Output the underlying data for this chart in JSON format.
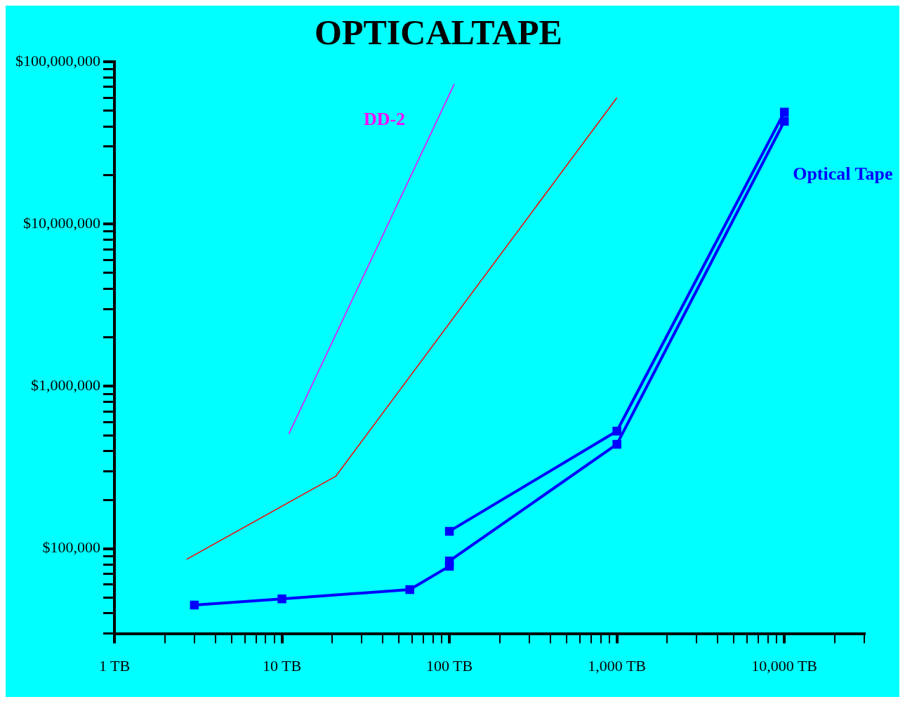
{
  "chart_data": {
    "type": "line",
    "title": "OPTICALTAPE",
    "log": "xy",
    "grid": false,
    "legend": false,
    "marker": "none",
    "line_style": "solid",
    "xlim": [
      1,
      30000
    ],
    "ylim": [
      30000,
      100000000
    ],
    "xticks": [
      {
        "value": 1,
        "label": "1 TB"
      },
      {
        "value": 2,
        "label": null
      },
      {
        "value": 3,
        "label": null
      },
      {
        "value": 4,
        "label": null
      },
      {
        "value": 5,
        "label": null
      },
      {
        "value": 6,
        "label": null
      },
      {
        "value": 7,
        "label": null
      },
      {
        "value": 8,
        "label": null
      },
      {
        "value": 9,
        "label": null
      },
      {
        "value": 10,
        "label": "10 TB"
      },
      {
        "value": 20,
        "label": null
      },
      {
        "value": 30,
        "label": null
      },
      {
        "value": 40,
        "label": null
      },
      {
        "value": 50,
        "label": null
      },
      {
        "value": 60,
        "label": null
      },
      {
        "value": 70,
        "label": null
      },
      {
        "value": 80,
        "label": null
      },
      {
        "value": 90,
        "label": null
      },
      {
        "value": 100,
        "label": "100 TB"
      },
      {
        "value": 200,
        "label": null
      },
      {
        "value": 300,
        "label": null
      },
      {
        "value": 400,
        "label": null
      },
      {
        "value": 500,
        "label": null
      },
      {
        "value": 600,
        "label": null
      },
      {
        "value": 700,
        "label": null
      },
      {
        "value": 800,
        "label": null
      },
      {
        "value": 900,
        "label": null
      },
      {
        "value": 1000,
        "label": "1,000 TB"
      },
      {
        "value": 2000,
        "label": null
      },
      {
        "value": 3000,
        "label": null
      },
      {
        "value": 4000,
        "label": null
      },
      {
        "value": 5000,
        "label": null
      },
      {
        "value": 6000,
        "label": null
      },
      {
        "value": 7000,
        "label": null
      },
      {
        "value": 8000,
        "label": null
      },
      {
        "value": 9000,
        "label": null
      },
      {
        "value": 10000,
        "label": "10,000 TB"
      },
      {
        "value": 20000,
        "label": null
      },
      {
        "value": 30000,
        "label": null
      }
    ],
    "yticks": [
      {
        "value": 30000,
        "label": null
      },
      {
        "value": 40000,
        "label": null
      },
      {
        "value": 50000,
        "label": null
      },
      {
        "value": 60000,
        "label": null
      },
      {
        "value": 70000,
        "label": null
      },
      {
        "value": 80000,
        "label": null
      },
      {
        "value": 90000,
        "label": null
      },
      {
        "value": 100000,
        "label": "$100,000"
      },
      {
        "value": 200000,
        "label": null
      },
      {
        "value": 300000,
        "label": null
      },
      {
        "value": 400000,
        "label": null
      },
      {
        "value": 500000,
        "label": null
      },
      {
        "value": 600000,
        "label": null
      },
      {
        "value": 700000,
        "label": null
      },
      {
        "value": 800000,
        "label": null
      },
      {
        "value": 900000,
        "label": null
      },
      {
        "value": 1000000,
        "label": "$1,000,000"
      },
      {
        "value": 2000000,
        "label": null
      },
      {
        "value": 3000000,
        "label": null
      },
      {
        "value": 4000000,
        "label": null
      },
      {
        "value": 5000000,
        "label": null
      },
      {
        "value": 6000000,
        "label": null
      },
      {
        "value": 7000000,
        "label": null
      },
      {
        "value": 8000000,
        "label": null
      },
      {
        "value": 9000000,
        "label": null
      },
      {
        "value": 10000000,
        "label": "$10,000,000"
      },
      {
        "value": 20000000,
        "label": null
      },
      {
        "value": 30000000,
        "label": null
      },
      {
        "value": 40000000,
        "label": null
      },
      {
        "value": 50000000,
        "label": null
      },
      {
        "value": 60000000,
        "label": null
      },
      {
        "value": 70000000,
        "label": null
      },
      {
        "value": 80000000,
        "label": null
      },
      {
        "value": 90000000,
        "label": null
      },
      {
        "value": 100000000,
        "label": "$100,000,000"
      }
    ],
    "series": [
      {
        "name": "DD-2",
        "color": "#ff00ff",
        "x": [
          11,
          107
        ],
        "values": [
          510000,
          73000000
        ]
      },
      {
        "color": "#ff0000",
        "x": [
          2.7,
          21,
          1000
        ],
        "values": [
          86000,
          280000,
          60000000
        ]
      },
      {
        "name": "Optical Tape",
        "color": "#0000ff",
        "marker": "square",
        "x": [
          100,
          1000,
          10000
        ],
        "values": [
          128000,
          530000,
          49000000
        ]
      },
      {
        "color": "#0000ff",
        "marker": "square",
        "x": [
          3,
          10,
          58,
          100,
          100,
          1000,
          10000
        ],
        "values": [
          45000,
          49000,
          56000,
          78000,
          84000,
          440000,
          43000000
        ]
      }
    ]
  }
}
